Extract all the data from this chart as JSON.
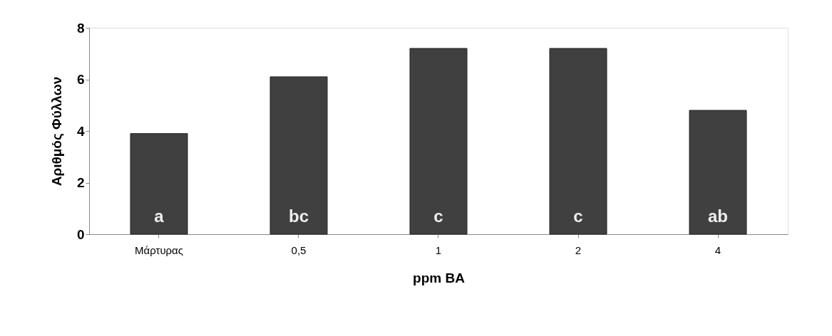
{
  "chart_data": {
    "type": "bar",
    "xlabel": "ppm BA",
    "ylabel": "Αριθμός Φύλλων",
    "categories": [
      "Μάρτυρας",
      "0,5",
      "1",
      "2",
      "4"
    ],
    "values": [
      3.9,
      6.1,
      7.2,
      7.2,
      4.8
    ],
    "color": "#404040",
    "ylim": [
      0,
      8
    ],
    "yticks": [
      0,
      2,
      4,
      6,
      8
    ],
    "grid": false,
    "annotations": [
      "a",
      "bc",
      "c",
      "c",
      "ab"
    ]
  }
}
